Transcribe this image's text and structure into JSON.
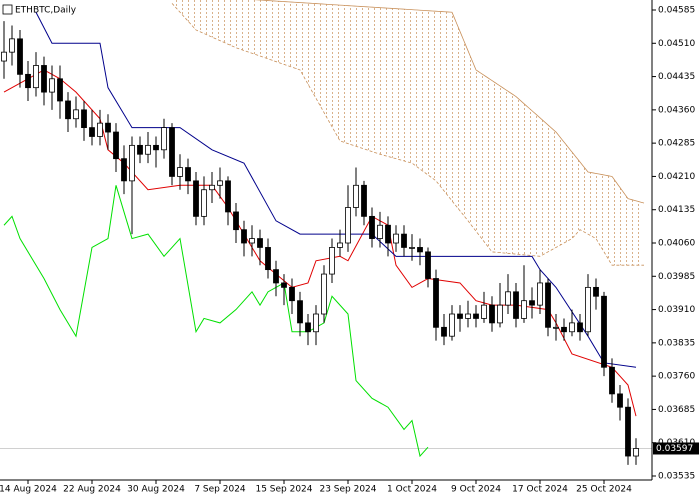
{
  "chart_data": {
    "type": "candlestick",
    "title": "ETHBTC,Daily",
    "categories": [
      null,
      null,
      null,
      "14 Aug 2024",
      null,
      null,
      null,
      null,
      null,
      null,
      null,
      "22 Aug 2024",
      null,
      null,
      null,
      null,
      null,
      null,
      null,
      "30 Aug 2024",
      null,
      null,
      null,
      null,
      null,
      null,
      null,
      "7 Sep 2024",
      null,
      null,
      null,
      null,
      null,
      null,
      null,
      "15 Sep 2024",
      null,
      null,
      null,
      null,
      null,
      null,
      null,
      "23 Sep 2024",
      null,
      null,
      null,
      null,
      null,
      null,
      null,
      "1 Oct 2024",
      null,
      null,
      null,
      null,
      null,
      null,
      null,
      "9 Oct 2024",
      null,
      null,
      null,
      null,
      null,
      null,
      null,
      "17 Oct 2024",
      null,
      null,
      null,
      null,
      null,
      null,
      null,
      "25 Oct 2024",
      null,
      null,
      null,
      null
    ],
    "open": [
      0.0447,
      0.0449,
      0.0452,
      0.0444,
      0.0441,
      0.0446,
      0.044,
      0.0443,
      0.0438,
      0.0434,
      0.0436,
      0.0432,
      0.043,
      0.0433,
      0.0431,
      0.0425,
      0.042,
      0.0428,
      0.0426,
      0.0428,
      0.0427,
      0.0432,
      0.0421,
      0.0423,
      0.042,
      0.0412,
      0.0418,
      0.0419,
      0.042,
      0.0413,
      0.0409,
      0.0406,
      0.0407,
      0.0405,
      0.04,
      0.0397,
      0.0396,
      0.0393,
      0.0388,
      0.0386,
      0.039,
      0.0399,
      0.0405,
      0.0406,
      0.0414,
      0.0419,
      0.0412,
      0.0407,
      0.041,
      0.0406,
      0.0408,
      0.0405,
      0.0405,
      0.0404,
      0.0398,
      0.0387,
      0.0385,
      0.039,
      0.0389,
      0.039,
      0.0389,
      0.0392,
      0.0388,
      0.0392,
      0.0395,
      0.0389,
      0.0393,
      0.0392,
      0.0397,
      0.0387,
      0.0387,
      0.0386,
      0.0388,
      0.0386,
      0.0396,
      0.0394,
      0.0378,
      0.0372,
      0.0369,
      0.0358
    ],
    "high": [
      0.0456,
      0.0455,
      0.0454,
      0.0447,
      0.0449,
      0.0448,
      0.0446,
      0.0446,
      0.044,
      0.0439,
      0.0438,
      0.0436,
      0.0436,
      0.0435,
      0.0433,
      0.0428,
      0.043,
      0.043,
      0.0431,
      0.043,
      0.0434,
      0.0433,
      0.0426,
      0.0425,
      0.0422,
      0.0421,
      0.0422,
      0.0423,
      0.0421,
      0.0415,
      0.0411,
      0.041,
      0.0409,
      0.0407,
      0.0402,
      0.0399,
      0.0398,
      0.0395,
      0.039,
      0.0392,
      0.0401,
      0.0407,
      0.0409,
      0.0419,
      0.0423,
      0.042,
      0.0414,
      0.0413,
      0.0412,
      0.041,
      0.041,
      0.0408,
      0.0407,
      0.0405,
      0.04,
      0.039,
      0.0392,
      0.0392,
      0.0393,
      0.0392,
      0.0395,
      0.0394,
      0.0397,
      0.0399,
      0.0397,
      0.0401,
      0.0396,
      0.04,
      0.0398,
      0.039,
      0.0389,
      0.0391,
      0.039,
      0.0399,
      0.0398,
      0.0395,
      0.038,
      0.0374,
      0.0371,
      0.0362
    ],
    "low": [
      0.0443,
      0.0446,
      0.0441,
      0.0438,
      0.0439,
      0.0437,
      0.0436,
      0.0434,
      0.0431,
      0.0432,
      0.0429,
      0.0428,
      0.0428,
      0.0427,
      0.0422,
      0.0417,
      0.0408,
      0.0424,
      0.0424,
      0.0423,
      0.0425,
      0.0419,
      0.0418,
      0.0417,
      0.041,
      0.041,
      0.0415,
      0.0416,
      0.041,
      0.0406,
      0.0403,
      0.0403,
      0.0401,
      0.0398,
      0.0394,
      0.0392,
      0.039,
      0.0385,
      0.0383,
      0.0383,
      0.0388,
      0.0397,
      0.0403,
      0.0404,
      0.0412,
      0.041,
      0.0405,
      0.0405,
      0.0403,
      0.0404,
      0.0403,
      0.0402,
      0.0401,
      0.0396,
      0.0384,
      0.0383,
      0.0384,
      0.0386,
      0.0387,
      0.0387,
      0.0388,
      0.0386,
      0.0387,
      0.039,
      0.0387,
      0.0388,
      0.0389,
      0.039,
      0.0385,
      0.0384,
      0.0384,
      0.0385,
      0.0384,
      0.0385,
      0.0391,
      0.0376,
      0.037,
      0.0366,
      0.0356,
      0.0356
    ],
    "close": [
      0.0449,
      0.0452,
      0.0444,
      0.0441,
      0.0446,
      0.044,
      0.0443,
      0.0438,
      0.0434,
      0.0436,
      0.0432,
      0.043,
      0.0433,
      0.0431,
      0.0425,
      0.042,
      0.0428,
      0.0426,
      0.0428,
      0.0427,
      0.0432,
      0.0421,
      0.0423,
      0.042,
      0.0412,
      0.0418,
      0.0419,
      0.042,
      0.0413,
      0.0409,
      0.0406,
      0.0407,
      0.0405,
      0.04,
      0.0397,
      0.0396,
      0.0393,
      0.0388,
      0.0386,
      0.039,
      0.0399,
      0.0405,
      0.0406,
      0.0414,
      0.0419,
      0.0412,
      0.0407,
      0.041,
      0.0406,
      0.0408,
      0.0405,
      0.0405,
      0.0404,
      0.0398,
      0.0387,
      0.0385,
      0.039,
      0.0389,
      0.039,
      0.0389,
      0.0392,
      0.0388,
      0.0392,
      0.0395,
      0.0389,
      0.0393,
      0.0392,
      0.0397,
      0.0387,
      0.0387,
      0.0386,
      0.0388,
      0.0386,
      0.0396,
      0.0394,
      0.0378,
      0.0372,
      0.0369,
      0.0358,
      0.03597
    ],
    "lines": [
      {
        "color": "#e00000",
        "x": [
          0,
          5,
          7,
          9,
          12,
          13,
          15,
          18,
          22,
          26,
          28,
          32,
          36,
          38,
          39,
          42,
          43,
          46,
          48,
          49,
          51,
          53,
          57,
          59,
          61,
          64,
          68,
          69,
          71,
          76,
          78,
          79
        ],
        "values": [
          0.044,
          0.0445,
          0.0443,
          0.044,
          0.0434,
          0.0427,
          0.0424,
          0.0418,
          0.0419,
          0.0419,
          0.0414,
          0.0402,
          0.0396,
          0.0397,
          0.0402,
          0.0403,
          0.0402,
          0.0412,
          0.041,
          0.0401,
          0.0396,
          0.0398,
          0.0397,
          0.0393,
          0.0392,
          0.0392,
          0.0391,
          0.0388,
          0.0381,
          0.0378,
          0.0374,
          0.0367
        ]
      },
      {
        "color": "#00008b",
        "x": [
          4,
          6,
          12,
          13,
          16,
          22,
          26,
          30,
          34,
          37,
          46,
          49,
          66,
          67,
          69,
          73,
          75,
          79
        ],
        "values": [
          0.0458,
          0.0451,
          0.0451,
          0.0441,
          0.0432,
          0.0432,
          0.0427,
          0.0424,
          0.0411,
          0.0408,
          0.0408,
          0.0403,
          0.0403,
          0.04,
          0.0396,
          0.0385,
          0.0379,
          0.0378
        ]
      },
      {
        "color": "#00e000",
        "x": [
          0,
          1,
          2,
          5,
          7,
          9,
          11,
          13,
          14,
          16,
          18,
          20,
          22,
          24,
          25,
          27,
          29,
          31,
          32,
          33,
          35,
          36,
          38,
          40,
          41,
          43,
          44,
          46,
          48,
          50,
          51,
          52,
          53
        ],
        "values": [
          0.041,
          0.0412,
          0.0407,
          0.0398,
          0.0391,
          0.0385,
          0.0405,
          0.0407,
          0.0419,
          0.0407,
          0.0408,
          0.0403,
          0.0407,
          0.0386,
          0.0389,
          0.0388,
          0.0391,
          0.0395,
          0.0392,
          0.0395,
          0.0397,
          0.0386,
          0.0386,
          0.0388,
          0.0394,
          0.039,
          0.0375,
          0.0371,
          0.0369,
          0.0364,
          0.0366,
          0.0358,
          0.036
        ]
      }
    ],
    "cloud": {
      "color": "#c8905a",
      "upper": {
        "x": [
          21,
          56,
          59,
          64,
          69,
          73,
          76,
          78,
          80
        ],
        "values": [
          0.0462,
          0.0458,
          0.0445,
          0.0439,
          0.0431,
          0.0422,
          0.0421,
          0.0416,
          0.0415
        ]
      },
      "lower": {
        "x": [
          21,
          24,
          29,
          37,
          42,
          47,
          51,
          54,
          58,
          61,
          67,
          71,
          72,
          74,
          76,
          80
        ],
        "values": [
          0.046,
          0.0454,
          0.045,
          0.0445,
          0.0429,
          0.0426,
          0.0424,
          0.042,
          0.0411,
          0.0404,
          0.0403,
          0.0407,
          0.0409,
          0.0407,
          0.0401,
          0.0401
        ]
      }
    },
    "ylim": [
      0.03535,
      0.04585
    ],
    "yticks": [
      0.03535,
      {
        "value": 0.0361,
        "label": "0.03610"
      },
      0.03685,
      {
        "value": 0.0376,
        "label": "0.03760"
      },
      0.03835,
      {
        "value": 0.0391,
        "label": "0.03910"
      },
      0.03985,
      {
        "value": 0.0406,
        "label": "0.04060"
      },
      0.04135,
      {
        "value": 0.0421,
        "label": "0.04210"
      },
      0.04285,
      {
        "value": 0.0436,
        "label": "0.04360"
      },
      0.04435,
      {
        "value": 0.0451,
        "label": "0.04510"
      },
      0.04585
    ]
  }
}
